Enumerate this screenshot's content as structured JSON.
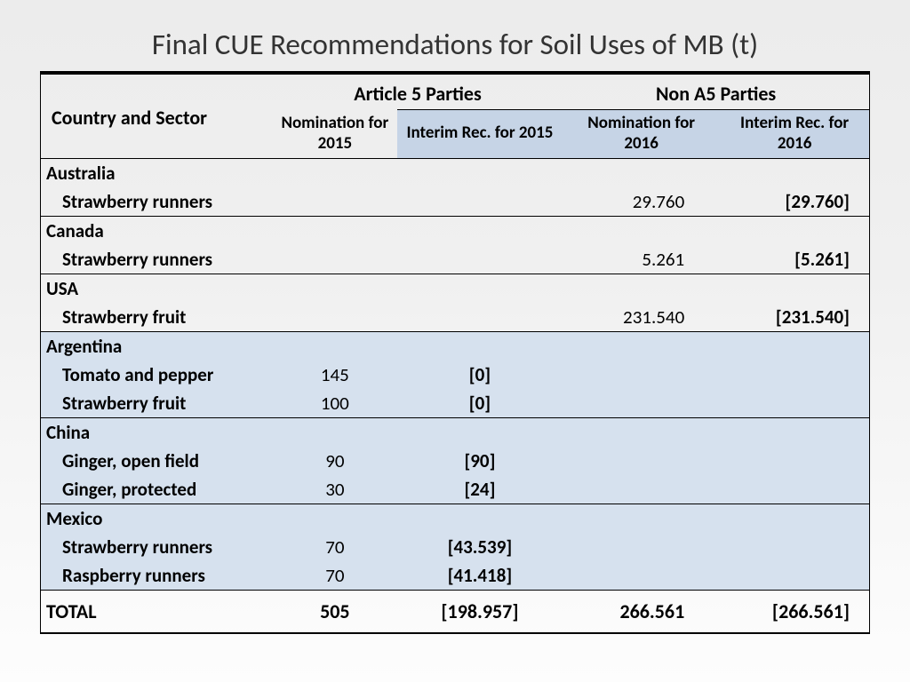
{
  "title": "Final CUE Recommendations for Soil Uses of MB (t)",
  "headers": {
    "col1": "Country and Sector",
    "group1": "Article 5 Parties",
    "group2": "Non A5 Parties",
    "sub1": "Nomination for 2015",
    "sub2": "Interim Rec. for 2015",
    "sub3": "Nomination for 2016",
    "sub4": "Interim Rec. for 2016"
  },
  "rows": [
    {
      "type": "country",
      "label": "Australia",
      "a5": false
    },
    {
      "type": "sector",
      "label": "Strawberry runners",
      "a5": false,
      "nom2016": "29.760",
      "rec2016": "[29.760]"
    },
    {
      "type": "country",
      "label": "Canada",
      "a5": false
    },
    {
      "type": "sector",
      "label": "Strawberry runners",
      "a5": false,
      "nom2016": "5.261",
      "rec2016": "[5.261]"
    },
    {
      "type": "country",
      "label": "USA",
      "a5": false
    },
    {
      "type": "sector",
      "label": "Strawberry fruit",
      "a5": false,
      "nom2016": "231.540",
      "rec2016": "[231.540]"
    },
    {
      "type": "country",
      "label": "Argentina",
      "a5": true
    },
    {
      "type": "sector",
      "label": "Tomato and pepper",
      "a5": true,
      "nom2015": "145",
      "rec2015": "[0]"
    },
    {
      "type": "sector",
      "label": "Strawberry fruit",
      "a5": true,
      "nom2015": "100",
      "rec2015": "[0]"
    },
    {
      "type": "country",
      "label": "China",
      "a5": true
    },
    {
      "type": "sector",
      "label": "Ginger, open field",
      "a5": true,
      "nom2015": "90",
      "rec2015": "[90]"
    },
    {
      "type": "sector",
      "label": "Ginger, protected",
      "a5": true,
      "nom2015": "30",
      "rec2015": "[24]"
    },
    {
      "type": "country",
      "label": "Mexico",
      "a5": true
    },
    {
      "type": "sector",
      "label": "Strawberry runners",
      "a5": true,
      "nom2015": "70",
      "rec2015": "[43.539]"
    },
    {
      "type": "sector",
      "label": "Raspberry runners",
      "a5": true,
      "nom2015": "70",
      "rec2015": "[41.418]"
    }
  ],
  "total": {
    "label": "TOTAL",
    "nom2015": "505",
    "rec2015": "[198.957]",
    "nom2016": "266.561",
    "rec2016": "[266.561]"
  },
  "style": {
    "background_gradient": [
      "#ececec",
      "#fdfdfd"
    ],
    "subheader_bg": "#c6d4e6",
    "a5_row_bg": "#d6e1ee",
    "border_color": "#000000",
    "title_fontsize": 33,
    "body_fontsize": 21,
    "font_family": "Calibri"
  }
}
